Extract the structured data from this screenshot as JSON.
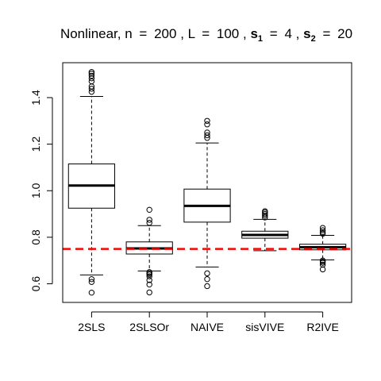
{
  "chart_data": {
    "type": "boxplot",
    "title": {
      "prefix": "Nonlinear, n",
      "n": "200",
      "L_label": "L",
      "L": "100",
      "s1_label": "s",
      "s1_sub": "1",
      "s1": "4",
      "s2_label": "s",
      "s2_sub": "2",
      "s2": "20",
      "eq": "=",
      "sep": ", "
    },
    "ylim": [
      0.52,
      1.55
    ],
    "yticks": [
      0.6,
      0.8,
      1.0,
      1.2,
      1.4
    ],
    "ytick_labels": [
      "0.6",
      "0.8",
      "1.0",
      "1.2",
      "1.4"
    ],
    "reference_line": {
      "y": 0.75,
      "color": "#ff0000",
      "style": "dashed"
    },
    "categories": [
      "2SLS",
      "2SLSOr",
      "NAIVE",
      "sisVIVE",
      "R2IVE"
    ],
    "boxes": [
      {
        "name": "2SLS",
        "whisker_low": 0.638,
        "q1": 0.925,
        "median": 1.022,
        "q3": 1.115,
        "whisker_high": 1.405,
        "outliers": [
          0.562,
          0.608,
          0.62,
          1.425,
          1.438,
          1.448,
          1.47,
          1.483,
          1.494,
          1.503,
          1.51
        ]
      },
      {
        "name": "2SLSOr",
        "whisker_low": 0.655,
        "q1": 0.728,
        "median": 0.752,
        "q3": 0.78,
        "whisker_high": 0.85,
        "outliers": [
          0.563,
          0.597,
          0.616,
          0.632,
          0.64,
          0.645,
          0.65,
          0.862,
          0.875,
          0.918
        ]
      },
      {
        "name": "NAIVE",
        "whisker_low": 0.672,
        "q1": 0.865,
        "median": 0.935,
        "q3": 1.007,
        "whisker_high": 1.205,
        "outliers": [
          0.59,
          0.62,
          0.645,
          1.227,
          1.238,
          1.25,
          1.285,
          1.3
        ]
      },
      {
        "name": "sisVIVE",
        "whisker_low": 0.742,
        "q1": 0.796,
        "median": 0.81,
        "q3": 0.826,
        "whisker_high": 0.877,
        "outliers": [
          0.885,
          0.893,
          0.9,
          0.907,
          0.912
        ]
      },
      {
        "name": "R2IVE",
        "whisker_low": 0.703,
        "q1": 0.746,
        "median": 0.757,
        "q3": 0.77,
        "whisker_high": 0.808,
        "outliers": [
          0.662,
          0.682,
          0.69,
          0.695,
          0.7,
          0.815,
          0.822,
          0.83,
          0.84
        ]
      }
    ]
  }
}
